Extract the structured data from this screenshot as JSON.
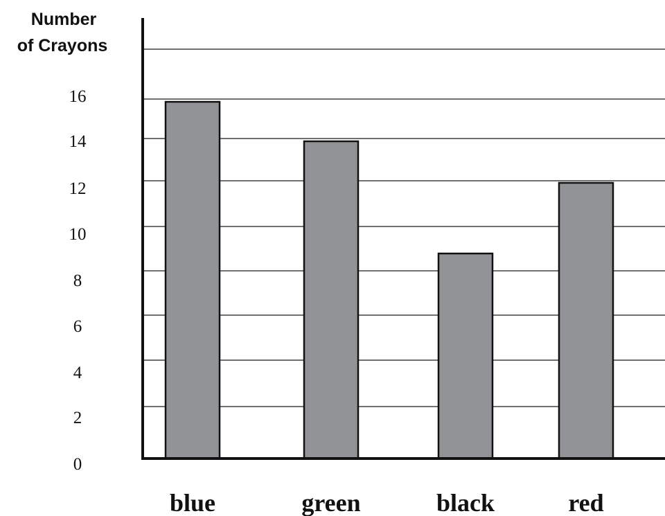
{
  "chart_data": {
    "type": "bar",
    "title": "",
    "ylabel": [
      "Number",
      "of Crayons"
    ],
    "xlabel": "",
    "categories": [
      "blue",
      "green",
      "black",
      "red"
    ],
    "values": [
      16,
      14,
      9,
      12
    ],
    "ylim": [
      0,
      16
    ],
    "yticks": [
      0,
      2,
      4,
      6,
      8,
      10,
      12,
      14,
      16
    ],
    "grid": true,
    "bar_color": "#929396",
    "bar_edge_color": "#111111",
    "axis_color": "#111111"
  }
}
